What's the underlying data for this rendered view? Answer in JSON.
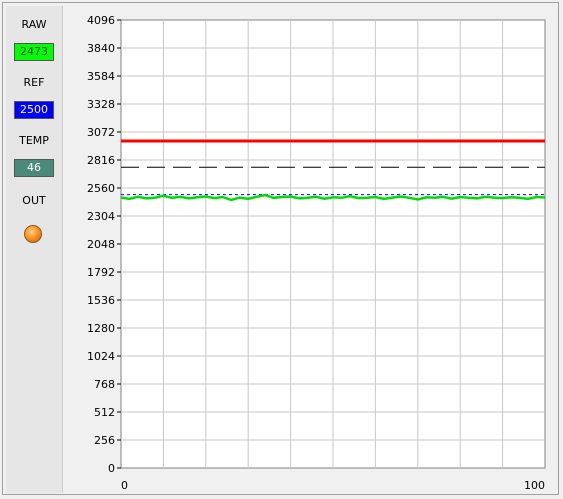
{
  "indicators": {
    "raw": {
      "label": "RAW",
      "value": "2473",
      "bg": "#00ff00",
      "fg": "#004000"
    },
    "ref": {
      "label": "REF",
      "value": "2500",
      "bg": "#0000ff",
      "fg": "#ffffff"
    },
    "temp": {
      "label": "TEMP",
      "value": "46",
      "bg": "#4a8a7a",
      "fg": "#ffffff"
    },
    "out": {
      "label": "OUT",
      "led_color": "#ff9a2a",
      "icon": "led-indicator-icon"
    }
  },
  "chart_data": {
    "type": "line",
    "xlim": [
      0,
      100
    ],
    "ylim": [
      0,
      4096
    ],
    "x_ticks": [
      "0",
      "100"
    ],
    "y_ticks": [
      "0",
      "256",
      "512",
      "768",
      "1024",
      "1280",
      "1536",
      "1792",
      "2048",
      "2304",
      "2560",
      "2816",
      "3072",
      "3328",
      "3584",
      "3840",
      "4096"
    ],
    "grid": true,
    "series": [
      {
        "name": "",
        "color": "#ff0000",
        "style": "solid",
        "width": 3,
        "x": [
          0,
          100
        ],
        "y": [
          2990,
          2990
        ]
      },
      {
        "name": "",
        "color": "#000000",
        "style": "dashed",
        "width": 1,
        "x": [
          0,
          100
        ],
        "y": [
          2750,
          2750
        ]
      },
      {
        "name": "",
        "color": "#0000ff",
        "style": "dotted",
        "width": 1,
        "x": [
          0,
          100
        ],
        "y": [
          2500,
          2500
        ]
      },
      {
        "name": "",
        "color": "#00dd00",
        "style": "solid",
        "width": 2.5,
        "x": [
          0,
          2,
          4,
          6,
          8,
          10,
          12,
          14,
          16,
          18,
          20,
          22,
          24,
          26,
          28,
          30,
          32,
          34,
          36,
          38,
          40,
          42,
          44,
          46,
          48,
          50,
          52,
          54,
          56,
          58,
          60,
          62,
          64,
          66,
          68,
          70,
          72,
          74,
          76,
          78,
          80,
          82,
          84,
          86,
          88,
          90,
          92,
          94,
          96,
          98,
          100
        ],
        "y": [
          2473,
          2460,
          2480,
          2465,
          2470,
          2490,
          2470,
          2480,
          2465,
          2475,
          2482,
          2468,
          2478,
          2450,
          2472,
          2460,
          2480,
          2495,
          2470,
          2478,
          2482,
          2465,
          2470,
          2480,
          2462,
          2475,
          2470,
          2485,
          2468,
          2470,
          2478,
          2460,
          2472,
          2482,
          2470,
          2455,
          2475,
          2470,
          2480,
          2462,
          2478,
          2470,
          2465,
          2480,
          2472,
          2468,
          2476,
          2470,
          2460,
          2478,
          2473
        ]
      }
    ]
  }
}
